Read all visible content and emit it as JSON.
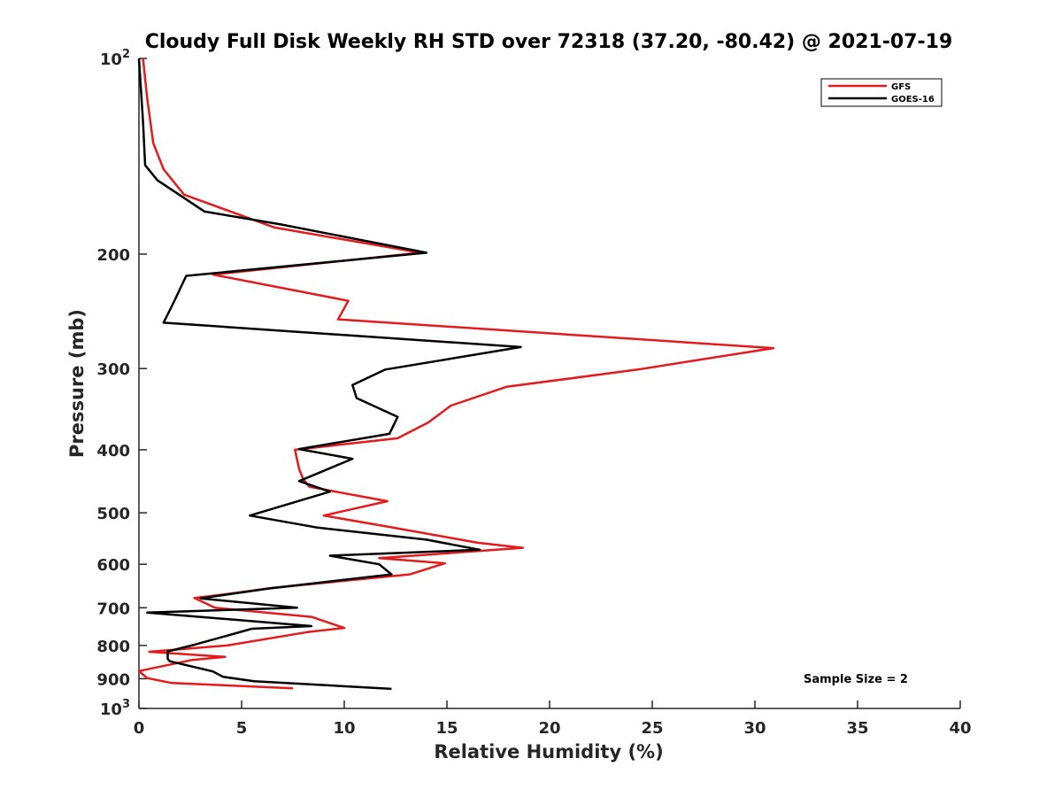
{
  "chart_data": {
    "type": "line",
    "title": "Cloudy Full Disk Weekly RH STD over 72318 (37.20, -80.42) @ 2021-07-19",
    "xlabel": "Relative Humidity (%)",
    "ylabel": "Pressure (mb)",
    "xlim": [
      0,
      40
    ],
    "ylim": [
      100,
      1000
    ],
    "yscale": "log",
    "y_reversed": true,
    "xticks": [
      0,
      5,
      10,
      15,
      20,
      25,
      30,
      35,
      40
    ],
    "xtick_labels": [
      "0",
      "5",
      "10",
      "15",
      "20",
      "25",
      "30",
      "35",
      "40"
    ],
    "yticks": [
      100,
      200,
      300,
      400,
      500,
      600,
      700,
      800,
      900,
      1000
    ],
    "ytick_labels": [
      {
        "base": "10",
        "exp": "2"
      },
      {
        "base": "200",
        "exp": ""
      },
      {
        "base": "300",
        "exp": ""
      },
      {
        "base": "400",
        "exp": ""
      },
      {
        "base": "500",
        "exp": ""
      },
      {
        "base": "600",
        "exp": ""
      },
      {
        "base": "700",
        "exp": ""
      },
      {
        "base": "800",
        "exp": ""
      },
      {
        "base": "900",
        "exp": ""
      },
      {
        "base": "10",
        "exp": "3"
      }
    ],
    "legend_position": "top-right",
    "annotation": "Sample Size = 2",
    "series": [
      {
        "name": "GFS",
        "color": "#e41a1c",
        "points": [
          [
            0.2,
            100
          ],
          [
            0.4,
            115
          ],
          [
            0.7,
            135
          ],
          [
            1.2,
            148
          ],
          [
            2.2,
            162
          ],
          [
            6.6,
            182
          ],
          [
            13.7,
            199
          ],
          [
            3.6,
            215
          ],
          [
            10.2,
            236
          ],
          [
            9.7,
            252
          ],
          [
            30.9,
            279
          ],
          [
            24.3,
            301
          ],
          [
            17.9,
            320
          ],
          [
            15.2,
            342
          ],
          [
            14.1,
            363
          ],
          [
            12.6,
            384
          ],
          [
            7.6,
            400
          ],
          [
            7.8,
            428
          ],
          [
            8.0,
            444
          ],
          [
            8.3,
            456
          ],
          [
            12.1,
            480
          ],
          [
            9.0,
            505
          ],
          [
            12.1,
            525
          ],
          [
            16.5,
            556
          ],
          [
            18.7,
            566
          ],
          [
            11.7,
            587
          ],
          [
            14.9,
            598
          ],
          [
            13.2,
            622
          ],
          [
            6.4,
            653
          ],
          [
            4.1,
            668
          ],
          [
            2.7,
            676
          ],
          [
            3.7,
            700
          ],
          [
            8.4,
            723
          ],
          [
            10.0,
            752
          ],
          [
            8.2,
            763
          ],
          [
            4.3,
            800
          ],
          [
            0.5,
            818
          ],
          [
            4.2,
            833
          ],
          [
            2.6,
            842
          ],
          [
            0.0,
            876
          ],
          [
            0.4,
            898
          ],
          [
            1.6,
            914
          ],
          [
            7.5,
            931
          ]
        ]
      },
      {
        "name": "GOES-16",
        "color": "#000000",
        "points": [
          [
            0.0,
            100
          ],
          [
            0.2,
            125
          ],
          [
            0.3,
            146
          ],
          [
            0.9,
            154
          ],
          [
            3.2,
            172
          ],
          [
            6.9,
            180
          ],
          [
            14.0,
            199
          ],
          [
            2.3,
            216
          ],
          [
            1.7,
            237
          ],
          [
            1.2,
            255
          ],
          [
            18.6,
            278
          ],
          [
            12.0,
            301
          ],
          [
            10.4,
            318
          ],
          [
            10.6,
            333
          ],
          [
            12.6,
            356
          ],
          [
            12.2,
            378
          ],
          [
            7.8,
            399
          ],
          [
            10.4,
            413
          ],
          [
            7.8,
            447
          ],
          [
            9.3,
            464
          ],
          [
            5.4,
            505
          ],
          [
            8.7,
            527
          ],
          [
            14.0,
            550
          ],
          [
            16.6,
            570
          ],
          [
            9.3,
            582
          ],
          [
            11.7,
            600
          ],
          [
            12.3,
            622
          ],
          [
            6.3,
            654
          ],
          [
            3.0,
            677
          ],
          [
            7.7,
            700
          ],
          [
            0.4,
            712
          ],
          [
            8.4,
            747
          ],
          [
            5.5,
            754
          ],
          [
            2.7,
            798
          ],
          [
            1.4,
            817
          ],
          [
            1.4,
            839
          ],
          [
            1.5,
            846
          ],
          [
            3.6,
            877
          ],
          [
            4.1,
            894
          ],
          [
            5.6,
            908
          ],
          [
            12.3,
            933
          ]
        ]
      }
    ]
  }
}
